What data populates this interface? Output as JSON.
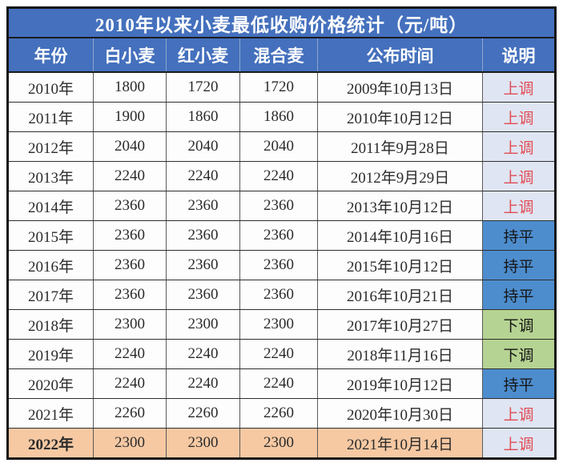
{
  "title": "2010年以来小麦最低收购价格统计（元/吨）",
  "unit_note": "元/吨",
  "columns": [
    "年份",
    "白小麦",
    "红小麦",
    "混合麦",
    "公布时间",
    "说明"
  ],
  "status_legend": {
    "up": "上调",
    "flat": "持平",
    "down": "下调"
  },
  "colors": {
    "header_bg": "#4470bd",
    "header_text": "#ffffff",
    "status_up_bg": "#dfe5f2",
    "status_up_text": "#e14b55",
    "status_flat_bg": "#4d8dce",
    "status_down_bg": "#b5d392",
    "highlight_row_bg": "#f6c9a3",
    "body_text": "#2b2b2b"
  },
  "rows": [
    {
      "year": "2010年",
      "white_wheat": "1800",
      "red_wheat": "1720",
      "mixed_wheat": "1720",
      "publish_date": "2009年10月13日",
      "status": "上调",
      "status_type": "up",
      "highlight": false
    },
    {
      "year": "2011年",
      "white_wheat": "1900",
      "red_wheat": "1860",
      "mixed_wheat": "1860",
      "publish_date": "2010年10月12日",
      "status": "上调",
      "status_type": "up",
      "highlight": false
    },
    {
      "year": "2012年",
      "white_wheat": "2040",
      "red_wheat": "2040",
      "mixed_wheat": "2040",
      "publish_date": "2011年9月28日",
      "status": "上调",
      "status_type": "up",
      "highlight": false
    },
    {
      "year": "2013年",
      "white_wheat": "2240",
      "red_wheat": "2240",
      "mixed_wheat": "2240",
      "publish_date": "2012年9月29日",
      "status": "上调",
      "status_type": "up",
      "highlight": false
    },
    {
      "year": "2014年",
      "white_wheat": "2360",
      "red_wheat": "2360",
      "mixed_wheat": "2360",
      "publish_date": "2013年10月12日",
      "status": "上调",
      "status_type": "up",
      "highlight": false
    },
    {
      "year": "2015年",
      "white_wheat": "2360",
      "red_wheat": "2360",
      "mixed_wheat": "2360",
      "publish_date": "2014年10月16日",
      "status": "持平",
      "status_type": "flat",
      "highlight": false
    },
    {
      "year": "2016年",
      "white_wheat": "2360",
      "red_wheat": "2360",
      "mixed_wheat": "2360",
      "publish_date": "2015年10月12日",
      "status": "持平",
      "status_type": "flat",
      "highlight": false
    },
    {
      "year": "2017年",
      "white_wheat": "2360",
      "red_wheat": "2360",
      "mixed_wheat": "2360",
      "publish_date": "2016年10月21日",
      "status": "持平",
      "status_type": "flat",
      "highlight": false
    },
    {
      "year": "2018年",
      "white_wheat": "2300",
      "red_wheat": "2300",
      "mixed_wheat": "2300",
      "publish_date": "2017年10月27日",
      "status": "下调",
      "status_type": "down",
      "highlight": false
    },
    {
      "year": "2019年",
      "white_wheat": "2240",
      "red_wheat": "2240",
      "mixed_wheat": "2240",
      "publish_date": "2018年11月16日",
      "status": "下调",
      "status_type": "down",
      "highlight": false
    },
    {
      "year": "2020年",
      "white_wheat": "2240",
      "red_wheat": "2240",
      "mixed_wheat": "2240",
      "publish_date": "2019年10月12日",
      "status": "持平",
      "status_type": "flat",
      "highlight": false
    },
    {
      "year": "2021年",
      "white_wheat": "2260",
      "red_wheat": "2260",
      "mixed_wheat": "2260",
      "publish_date": "2020年10月30日",
      "status": "上调",
      "status_type": "up",
      "highlight": false
    },
    {
      "year": "2022年",
      "white_wheat": "2300",
      "red_wheat": "2300",
      "mixed_wheat": "2300",
      "publish_date": "2021年10月14日",
      "status": "上调",
      "status_type": "up",
      "highlight": true
    }
  ]
}
